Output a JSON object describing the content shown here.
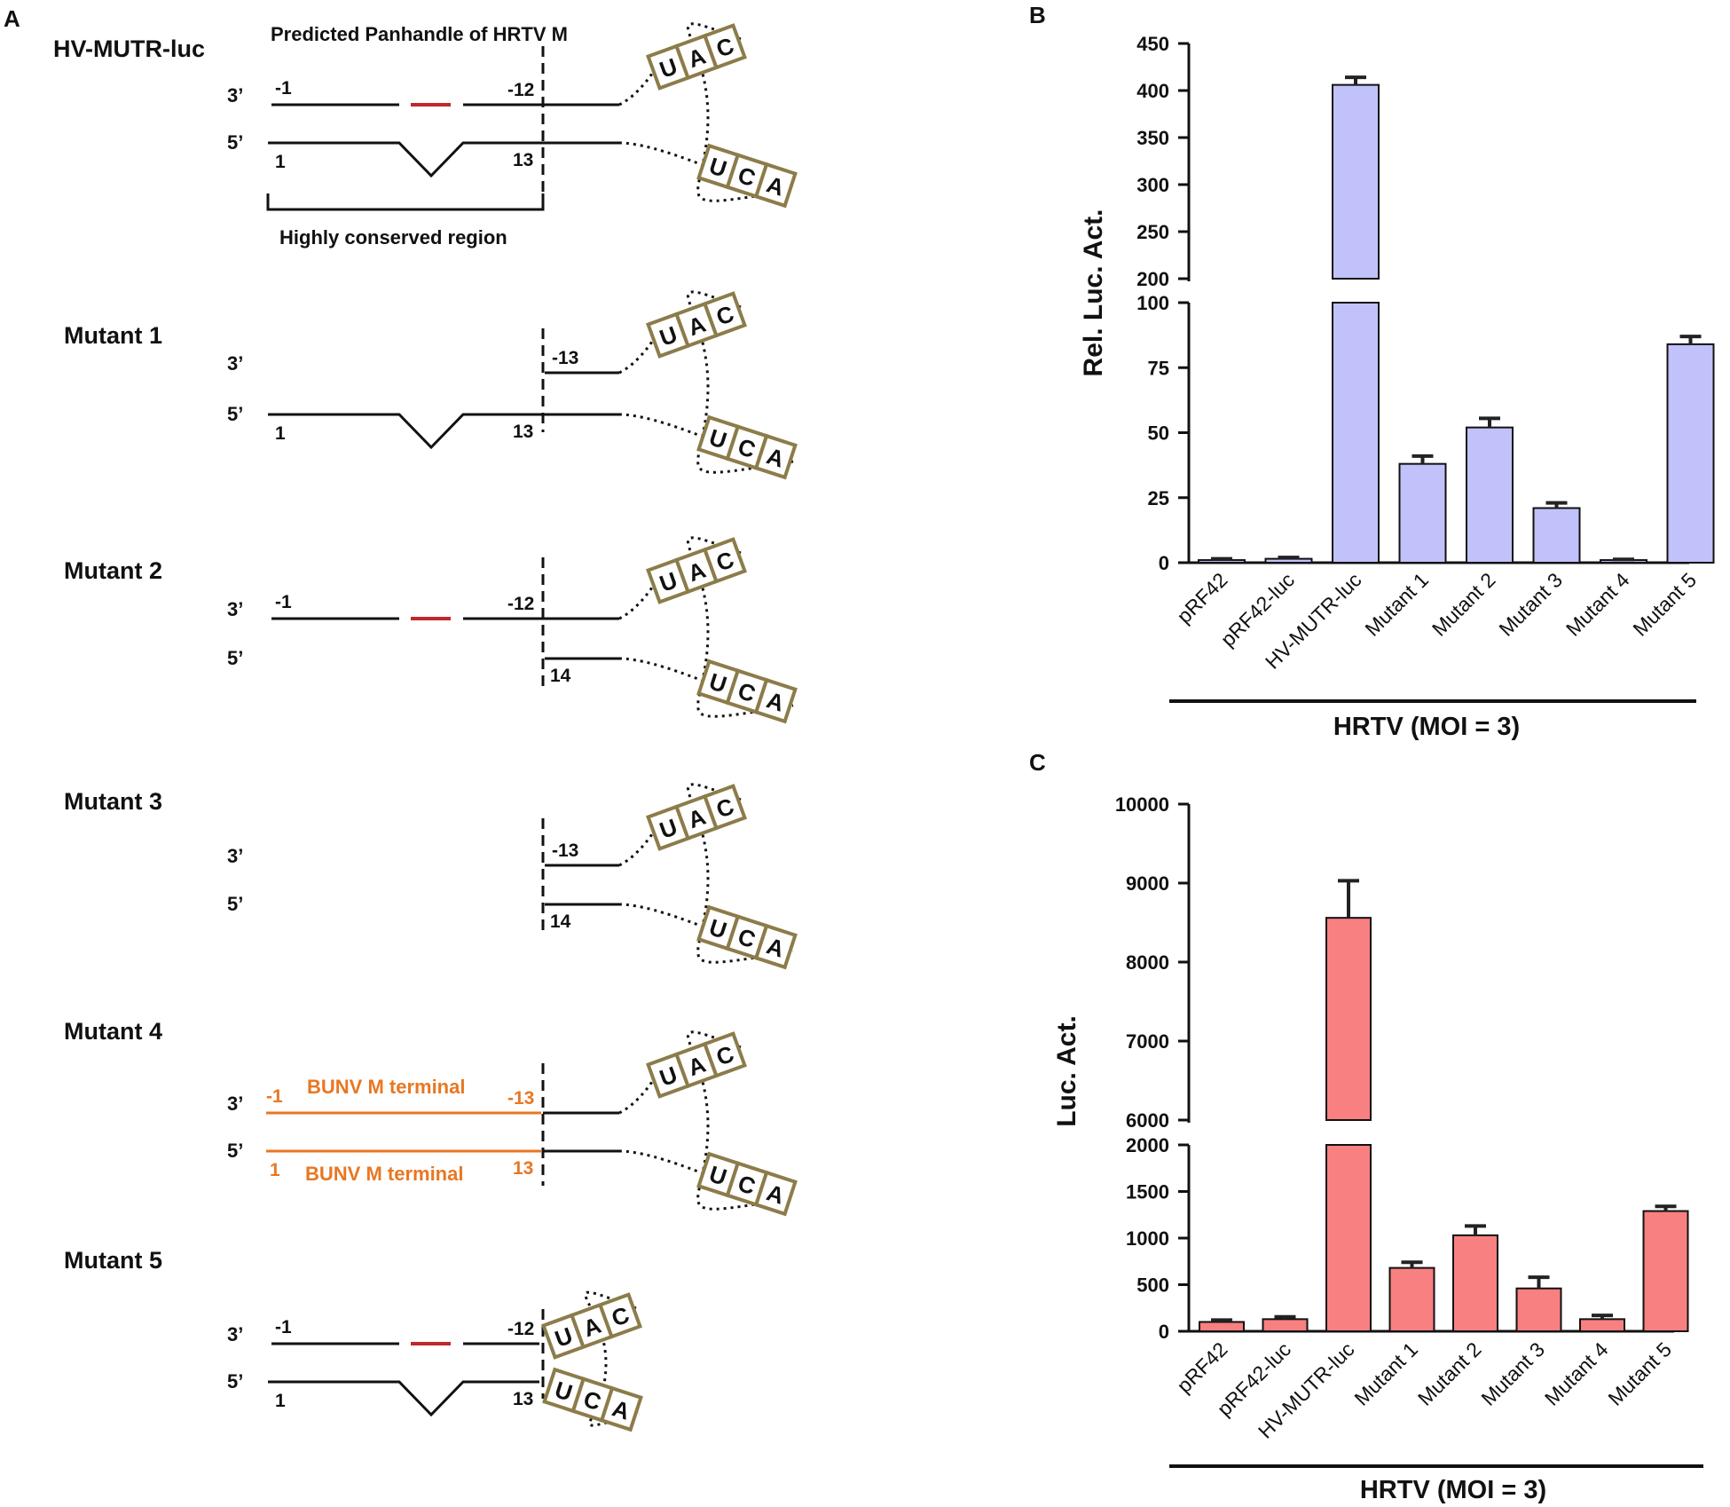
{
  "panels": {
    "a": "A",
    "b": "B",
    "c": "C"
  },
  "diagram": {
    "title": "Predicted Panhandle of HRTV M",
    "conserved_label": "Highly conserved region",
    "strand_3": "3’",
    "strand_5": "5’",
    "codon_top": [
      "U",
      "A",
      "C"
    ],
    "codon_bottom": [
      "U",
      "C",
      "A"
    ],
    "bunv_label": "BUNV M terminal",
    "constructs": [
      {
        "name": "HV-MUTR-luc",
        "p3a": "-1",
        "p3b": "-12",
        "p5a": "1",
        "p5b": "13"
      },
      {
        "name": "Mutant 1",
        "p3b": "-13",
        "p5a": "1",
        "p5b": "13"
      },
      {
        "name": "Mutant 2",
        "p3a": "-1",
        "p3b": "-12",
        "p5b": "14"
      },
      {
        "name": "Mutant 3",
        "p3b": "-13",
        "p5b": "14"
      },
      {
        "name": "Mutant 4",
        "p3a": "-1",
        "p3b": "-13",
        "p5a": "1",
        "p5b": "13"
      },
      {
        "name": "Mutant 5",
        "p3a": "-1",
        "p3b": "-12",
        "p5a": "1",
        "p5b": "13"
      }
    ]
  },
  "chart_data": [
    {
      "type": "bar",
      "panel": "B",
      "color": "#c2c2fa",
      "categories": [
        "pRF42",
        "pRF42-luc",
        "HV-MUTR-luc",
        "Mutant 1",
        "Mutant 2",
        "Mutant 3",
        "Mutant 4",
        "Mutant 5"
      ],
      "values": [
        1,
        1.5,
        406,
        38,
        52,
        21,
        1,
        84
      ],
      "errors": [
        0.5,
        0.5,
        8,
        3,
        3.5,
        2,
        0.3,
        3
      ],
      "ylabel": "Rel. Luc. Act.",
      "xlabel": "HRTV (MOI = 3)",
      "axis_break": [
        100,
        200
      ],
      "ylim": [
        0,
        450
      ],
      "yticks_lower": [
        "0",
        "25",
        "50",
        "75",
        "100"
      ],
      "yticks_upper": [
        "200",
        "250",
        "300",
        "350",
        "400",
        "450"
      ]
    },
    {
      "type": "bar",
      "panel": "C",
      "color": "#f88080",
      "categories": [
        "pRF42",
        "pRF42-luc",
        "HV-MUTR-luc",
        "Mutant 1",
        "Mutant 2",
        "Mutant 3",
        "Mutant 4",
        "Mutant 5"
      ],
      "values": [
        100,
        130,
        8560,
        680,
        1030,
        460,
        130,
        1290
      ],
      "errors": [
        20,
        25,
        470,
        60,
        100,
        120,
        40,
        50
      ],
      "ylabel": "Luc. Act.",
      "xlabel": "HRTV (MOI = 3)",
      "axis_break": [
        2000,
        6000
      ],
      "ylim": [
        0,
        10000
      ],
      "yticks_lower": [
        "0",
        "500",
        "1000",
        "1500",
        "2000"
      ],
      "yticks_upper": [
        "6000",
        "7000",
        "8000",
        "9000",
        "10000"
      ]
    }
  ]
}
